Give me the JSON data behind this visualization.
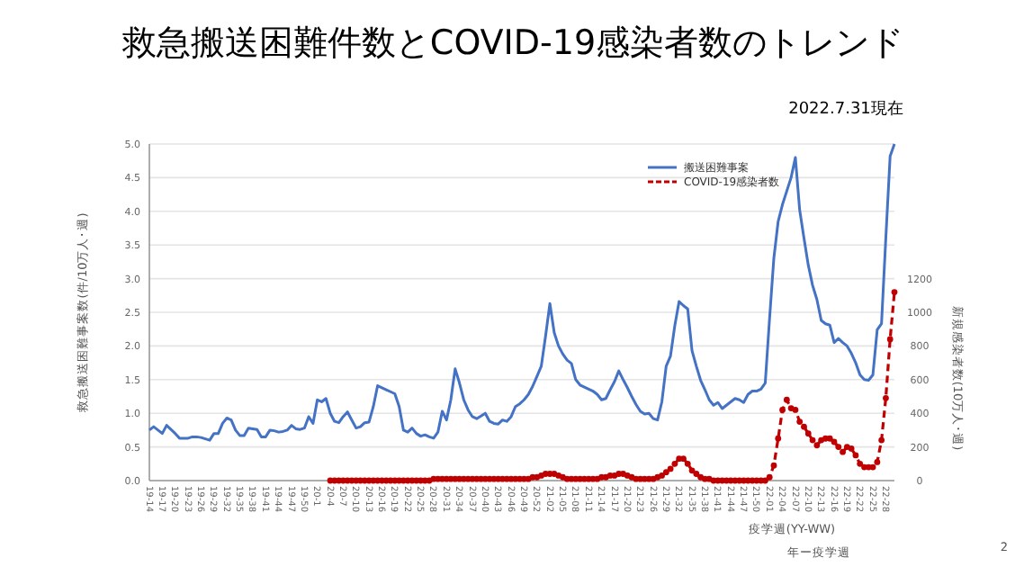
{
  "chart_data": {
    "type": "line",
    "title": "救急搬送困難件数とCOVID-19感染者数のトレンド",
    "subtitle": "2022.7.31現在",
    "ylabel": "救急搬送困難事案数(件/10万人･週)",
    "y2label": "新規感染者数(10万人･週)",
    "xlabel": "年ー疫学週",
    "annotations": [
      "疫学週(YY-WW)",
      "2"
    ],
    "categories": [
      "19-14",
      null,
      null,
      "19-17",
      null,
      null,
      "19-20",
      null,
      null,
      "19-23",
      null,
      null,
      "19-26",
      null,
      null,
      "19-29",
      null,
      null,
      "19-32",
      null,
      null,
      "19-35",
      null,
      null,
      "19-38",
      null,
      null,
      "19-41",
      null,
      null,
      "19-44",
      null,
      null,
      "19-47",
      null,
      null,
      "19-50",
      null,
      null,
      "20-1",
      null,
      null,
      "20-4",
      null,
      null,
      "20-7",
      null,
      null,
      "20-10",
      null,
      null,
      "20-13",
      null,
      null,
      "20-16",
      null,
      null,
      "20-19",
      null,
      null,
      "20-22",
      null,
      null,
      "20-25",
      null,
      null,
      "20-28",
      null,
      null,
      "20-31",
      null,
      null,
      "20-34",
      null,
      null,
      "20-37",
      null,
      null,
      "20-40",
      null,
      null,
      "20-43",
      null,
      null,
      "20-46",
      null,
      null,
      "20-49",
      null,
      null,
      "20-52",
      null,
      null,
      "21-02",
      null,
      null,
      "21-05",
      null,
      null,
      "21-08",
      null,
      null,
      "21-11",
      null,
      null,
      "21-14",
      null,
      null,
      "21-17",
      null,
      null,
      "21-20",
      null,
      null,
      "21-23",
      null,
      null,
      "21-26",
      null,
      null,
      "21-29",
      null,
      null,
      "21-32",
      null,
      null,
      "21-35",
      null,
      null,
      "21-38",
      null,
      null,
      "21-41",
      null,
      null,
      "21-44",
      null,
      null,
      "21-47",
      null,
      null,
      "21-50",
      null,
      null,
      "22-01",
      null,
      null,
      "22-04",
      null,
      null,
      "22-07",
      null,
      null,
      "22-10",
      null,
      null,
      "22-13",
      null,
      null,
      "22-16",
      null,
      null,
      "22-19",
      null,
      null,
      "22-22",
      null,
      null,
      "22-25",
      null,
      null,
      "22-28",
      null,
      null
    ],
    "series": [
      {
        "name": "搬送困難事案",
        "color": "#4472c4",
        "marker": "none",
        "line_style": "solid",
        "values": [
          0.75,
          0.8,
          0.75,
          0.7,
          0.82,
          0.76,
          0.7,
          0.63,
          0.63,
          0.63,
          0.65,
          0.65,
          0.64,
          0.62,
          0.6,
          0.7,
          0.7,
          0.85,
          0.93,
          0.9,
          0.75,
          0.67,
          0.67,
          0.78,
          0.77,
          0.76,
          0.65,
          0.65,
          0.75,
          0.74,
          0.72,
          0.73,
          0.75,
          0.82,
          0.77,
          0.76,
          0.78,
          0.95,
          0.85,
          1.2,
          1.17,
          1.22,
          1.0,
          0.88,
          0.86,
          0.95,
          1.02,
          0.9,
          0.78,
          0.8,
          0.86,
          0.87,
          1.1,
          1.41,
          1.38,
          1.35,
          1.32,
          1.29,
          1.1,
          0.75,
          0.72,
          0.78,
          0.7,
          0.66,
          0.68,
          0.65,
          0.63,
          0.72,
          1.03,
          0.9,
          1.2,
          1.66,
          1.45,
          1.2,
          1.05,
          0.95,
          0.92,
          0.96,
          1.0,
          0.88,
          0.85,
          0.84,
          0.9,
          0.88,
          0.95,
          1.1,
          1.14,
          1.2,
          1.28,
          1.4,
          1.55,
          1.7,
          2.15,
          2.63,
          2.2,
          2.0,
          1.88,
          1.79,
          1.74,
          1.5,
          1.42,
          1.39,
          1.36,
          1.33,
          1.28,
          1.2,
          1.22,
          1.35,
          1.47,
          1.63,
          1.5,
          1.38,
          1.25,
          1.13,
          1.03,
          0.99,
          1.0,
          0.92,
          0.9,
          1.17,
          1.7,
          1.85,
          2.3,
          2.66,
          2.6,
          2.55,
          1.93,
          1.7,
          1.49,
          1.35,
          1.2,
          1.12,
          1.16,
          1.07,
          1.12,
          1.17,
          1.22,
          1.2,
          1.16,
          1.28,
          1.33,
          1.33,
          1.36,
          1.45,
          2.4,
          3.3,
          3.85,
          4.1,
          4.3,
          4.5,
          4.8,
          4.02,
          3.6,
          3.2,
          2.9,
          2.69,
          2.38,
          2.33,
          2.31,
          2.05,
          2.11,
          2.05,
          2.0,
          1.89,
          1.75,
          1.57,
          1.5,
          1.49,
          1.57,
          2.24,
          2.33,
          3.6,
          4.82,
          5.0
        ]
      },
      {
        "name": "COVID-19感染者数",
        "color": "#c00000",
        "axis": "y2",
        "marker": "circle",
        "line_style": "dashed",
        "values": [
          null,
          null,
          null,
          null,
          null,
          null,
          null,
          null,
          null,
          null,
          null,
          null,
          null,
          null,
          null,
          null,
          null,
          null,
          null,
          null,
          null,
          null,
          null,
          null,
          null,
          null,
          null,
          null,
          null,
          null,
          null,
          null,
          null,
          null,
          null,
          null,
          null,
          null,
          null,
          null,
          null,
          null,
          0,
          0,
          0,
          0,
          0,
          0,
          0,
          0,
          0,
          0,
          0,
          0,
          0,
          0,
          0,
          0,
          0,
          0,
          0,
          0,
          0,
          0,
          0,
          0,
          10,
          10,
          10,
          10,
          10,
          10,
          10,
          10,
          10,
          10,
          10,
          10,
          10,
          10,
          10,
          10,
          10,
          10,
          10,
          10,
          10,
          10,
          10,
          20,
          20,
          30,
          40,
          40,
          40,
          30,
          20,
          10,
          10,
          10,
          10,
          10,
          10,
          10,
          10,
          20,
          20,
          30,
          30,
          40,
          40,
          30,
          20,
          10,
          10,
          10,
          10,
          10,
          20,
          30,
          50,
          70,
          100,
          130,
          130,
          100,
          60,
          40,
          20,
          10,
          10,
          0,
          0,
          0,
          0,
          0,
          0,
          0,
          0,
          0,
          0,
          0,
          0,
          0,
          20,
          90,
          250,
          420,
          480,
          430,
          420,
          350,
          320,
          280,
          240,
          210,
          240,
          250,
          250,
          230,
          200,
          170,
          200,
          190,
          150,
          100,
          80,
          80,
          80,
          110,
          240,
          490,
          840,
          1120
        ]
      }
    ],
    "ylim": [
      0,
      5
    ],
    "yticks": [
      {
        "value": 0,
        "label": "0.0"
      },
      0.5,
      {
        "value": 1,
        "label": "1.0"
      },
      1.5,
      {
        "value": 2,
        "label": "2.0"
      },
      2.5,
      {
        "value": 3,
        "label": "3.0"
      },
      3.5,
      {
        "value": 4,
        "label": "4.0"
      },
      4.5,
      {
        "value": 5,
        "label": "5.0"
      }
    ],
    "y2lim": [
      0,
      2000
    ],
    "y2ticks": [
      0,
      200,
      400,
      600,
      800,
      1000,
      1200
    ],
    "grid": "y",
    "legend": "top right"
  }
}
